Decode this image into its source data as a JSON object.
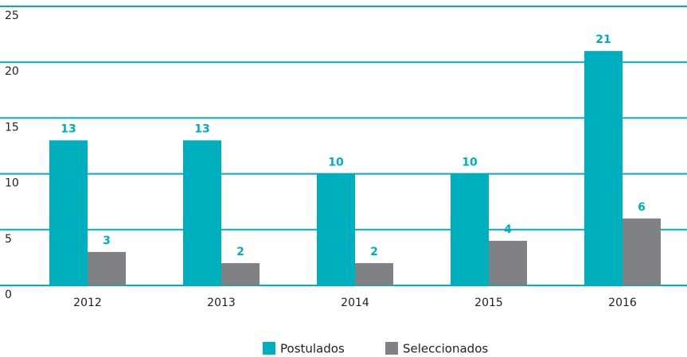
{
  "chart_data": {
    "type": "bar",
    "categories": [
      "2012",
      "2013",
      "2014",
      "2015",
      "2016"
    ],
    "series": [
      {
        "name": "Postulados",
        "color": "#00afbd",
        "values": [
          13,
          13,
          10,
          10,
          21
        ]
      },
      {
        "name": "Seleccionados",
        "color": "#808184",
        "values": [
          3,
          2,
          2,
          4,
          6
        ]
      }
    ],
    "ylim": [
      0,
      25
    ],
    "yticks": [
      0,
      5,
      10,
      15,
      20,
      25
    ],
    "grid": true,
    "legend": "bottom"
  }
}
